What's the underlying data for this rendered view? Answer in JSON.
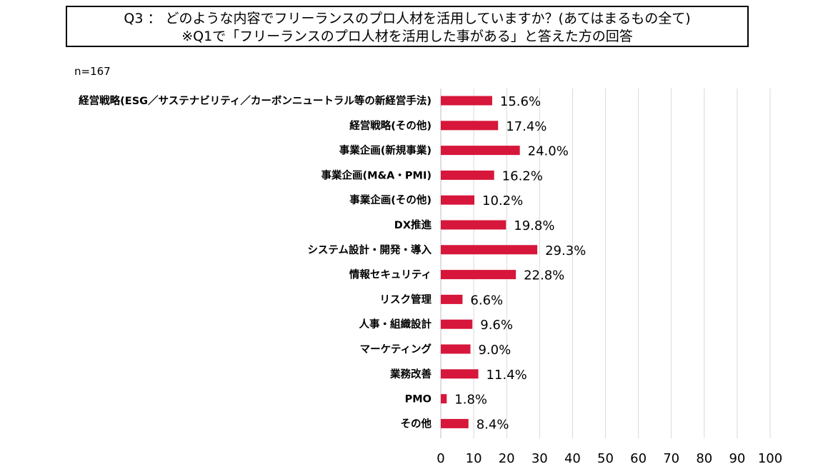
{
  "header": {
    "question_line": "Q3 ： どのような内容でフリーランスのプロ人材を活用していますか？(あてはまるもの全て)",
    "note_line": "※Q1で「フリーランスのプロ人材を活用した事がある」と答えた方の回答"
  },
  "sample_size": "n=167",
  "chart_data": {
    "type": "bar",
    "orientation": "horizontal",
    "title": "Q3 ： どのような内容でフリーランスのプロ人材を活用していますか？(あてはまるもの全て)",
    "subtitle": "※Q1で「フリーランスのプロ人材を活用した事がある」と答えた方の回答",
    "xlabel": "",
    "ylabel": "",
    "xlim": [
      0,
      100
    ],
    "x_ticks": [
      0,
      10,
      20,
      30,
      40,
      50,
      60,
      70,
      80,
      90,
      100
    ],
    "grid": "vertical",
    "bar_color": "#d7163b",
    "grid_color": "#d9d9d9",
    "categories": [
      "経営戦略(ESG／サステナビリティ／カーボンニュートラル等の新経営手法)",
      "経営戦略(その他)",
      "事業企画(新規事業)",
      "事業企画(M&A・PMI)",
      "事業企画(その他)",
      "DX推進",
      "システム設計・開発・導入",
      "情報セキュリティ",
      "リスク管理",
      "人事・組織設計",
      "マーケティング",
      "業務改善",
      "PMO",
      "その他"
    ],
    "values": [
      15.6,
      17.4,
      24.0,
      16.2,
      10.2,
      19.8,
      29.3,
      22.8,
      6.6,
      9.6,
      9.0,
      11.4,
      1.8,
      8.4
    ],
    "value_labels": [
      "15.6%",
      "17.4%",
      "24.0%",
      "16.2%",
      "10.2%",
      "19.8%",
      "29.3%",
      "22.8%",
      "6.6%",
      "9.6%",
      "9.0%",
      "11.4%",
      "1.8%",
      "8.4%"
    ]
  }
}
